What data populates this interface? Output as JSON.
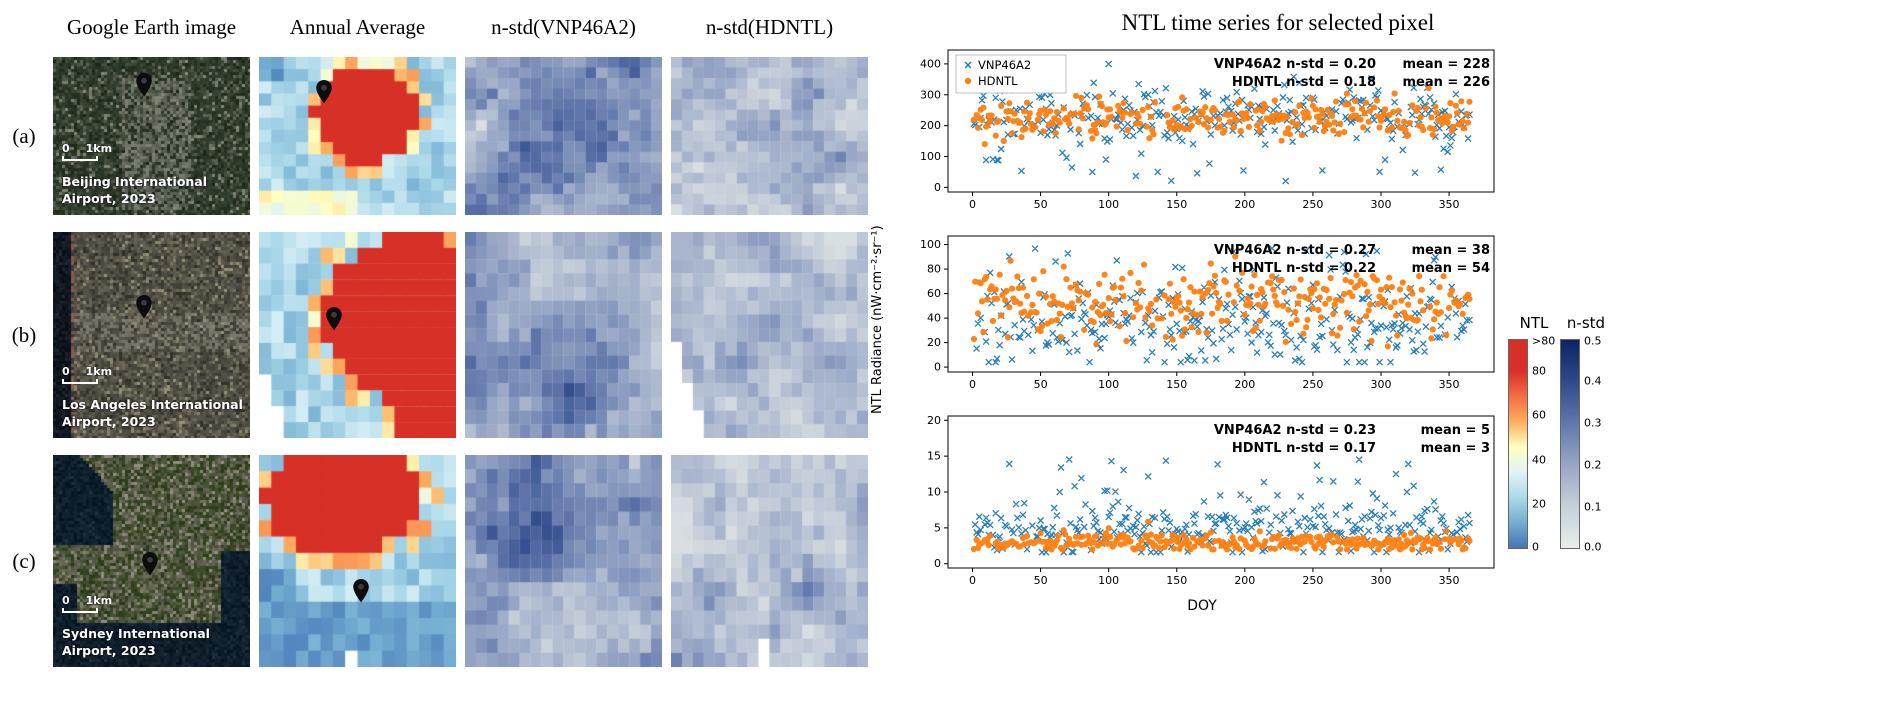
{
  "figure": {
    "column_headers": [
      "Google Earth image",
      "Annual Average",
      "n-std(VNP46A2)",
      "n-std(HDNTL)"
    ],
    "scalebar": {
      "zero": "0",
      "km": "1km"
    },
    "rows": [
      {
        "label": "(a)",
        "site_line1": "Beijing International",
        "site_line2": "Airport, 2023",
        "pins": {
          "sat": {
            "x": 0.46,
            "y": 0.25
          },
          "annual": {
            "x": 0.33,
            "y": 0.3
          }
        }
      },
      {
        "label": "(b)",
        "site_line1": "Los Angeles International",
        "site_line2": "Airport, 2023",
        "pins": {
          "sat": {
            "x": 0.46,
            "y": 0.42
          },
          "annual": {
            "x": 0.38,
            "y": 0.48
          }
        }
      },
      {
        "label": "(c)",
        "site_line1": "Sydney International",
        "site_line2": "Airport, 2023",
        "pins": {
          "sat": {
            "x": 0.49,
            "y": 0.57
          },
          "annual": {
            "x": 0.52,
            "y": 0.7
          }
        }
      }
    ]
  },
  "timeseries": {
    "title": "NTL time series for selected pixel",
    "xlabel": "DOY",
    "ylabel": "NTL Radiance (nW·cm⁻²·sr⁻¹)"
  },
  "colorbars": {
    "ntl": {
      "title": "NTL",
      "labels": [
        ">80",
        "80",
        "60",
        "40",
        "20",
        "0"
      ],
      "colors": [
        "#4575b4",
        "#74add1",
        "#abd9e9",
        "#e0f3f8",
        "#ffffbf",
        "#fdae61",
        "#f46d43",
        "#d73027"
      ]
    },
    "nstd": {
      "title": "n-std",
      "labels": [
        "0.5",
        "0.4",
        "0.3",
        "0.2",
        "0.1",
        "0.0"
      ],
      "colors": [
        "#e9ede8",
        "#c6cfda",
        "#97a6c5",
        "#6177ab",
        "#2e4a8a",
        "#0d2363"
      ]
    }
  },
  "chart_data": [
    {
      "type": "scatter",
      "panel": "a",
      "site": "Beijing International Airport, 2023",
      "x": {
        "label": "DOY",
        "ticks": [
          0,
          50,
          100,
          150,
          200,
          250,
          300,
          350
        ],
        "range": [
          -18,
          383
        ]
      },
      "y": {
        "ticks": [
          0,
          100,
          200,
          300,
          400
        ],
        "range": [
          -15,
          445
        ]
      },
      "series": [
        {
          "name": "VNP46A2",
          "marker": "x",
          "color": "#1f77b4",
          "mean": 228,
          "n_std": 0.2
        },
        {
          "name": "HDNTL",
          "marker": "circle",
          "color": "#ff7f0e",
          "mean": 226,
          "n_std": 0.18
        }
      ],
      "annotation_lines": [
        {
          "left": "VNP46A2 n-std = 0.20",
          "right": "mean = 228"
        },
        {
          "left": "HDNTL n-std = 0.18",
          "right": "mean = 226"
        }
      ],
      "legend": {
        "show": true,
        "position": "upper left",
        "entries": [
          "VNP46A2",
          "HDNTL"
        ]
      },
      "grid": false
    },
    {
      "type": "scatter",
      "panel": "b",
      "site": "Los Angeles International Airport, 2023",
      "x": {
        "label": "DOY",
        "ticks": [
          0,
          50,
          100,
          150,
          200,
          250,
          300,
          350
        ],
        "range": [
          -18,
          383
        ]
      },
      "y": {
        "ticks": [
          0,
          20,
          40,
          60,
          80,
          100
        ],
        "range": [
          -4,
          107
        ]
      },
      "series": [
        {
          "name": "VNP46A2",
          "marker": "x",
          "color": "#1f77b4",
          "mean": 38,
          "n_std": 0.27
        },
        {
          "name": "HDNTL",
          "marker": "circle",
          "color": "#ff7f0e",
          "mean": 54,
          "n_std": 0.22
        }
      ],
      "annotation_lines": [
        {
          "left": "VNP46A2 n-std = 0.27",
          "right": "mean = 38"
        },
        {
          "left": "HDNTL n-std = 0.22",
          "right": "mean = 54"
        }
      ],
      "legend": {
        "show": false
      },
      "grid": false
    },
    {
      "type": "scatter",
      "panel": "c",
      "site": "Sydney International Airport, 2023",
      "x": {
        "label": "DOY",
        "ticks": [
          0,
          50,
          100,
          150,
          200,
          250,
          300,
          350
        ],
        "range": [
          -18,
          383
        ]
      },
      "y": {
        "ticks": [
          0,
          5,
          10,
          15,
          20
        ],
        "range": [
          -0.6,
          20.6
        ]
      },
      "series": [
        {
          "name": "VNP46A2",
          "marker": "x",
          "color": "#1f77b4",
          "mean": 5,
          "n_std": 0.23
        },
        {
          "name": "HDNTL",
          "marker": "circle",
          "color": "#ff7f0e",
          "mean": 3,
          "n_std": 0.17
        }
      ],
      "annotation_lines": [
        {
          "left": "VNP46A2 n-std = 0.23",
          "right": "mean = 5"
        },
        {
          "left": "HDNTL n-std = 0.17",
          "right": "mean = 3"
        }
      ],
      "legend": {
        "show": false
      },
      "grid": false
    }
  ]
}
